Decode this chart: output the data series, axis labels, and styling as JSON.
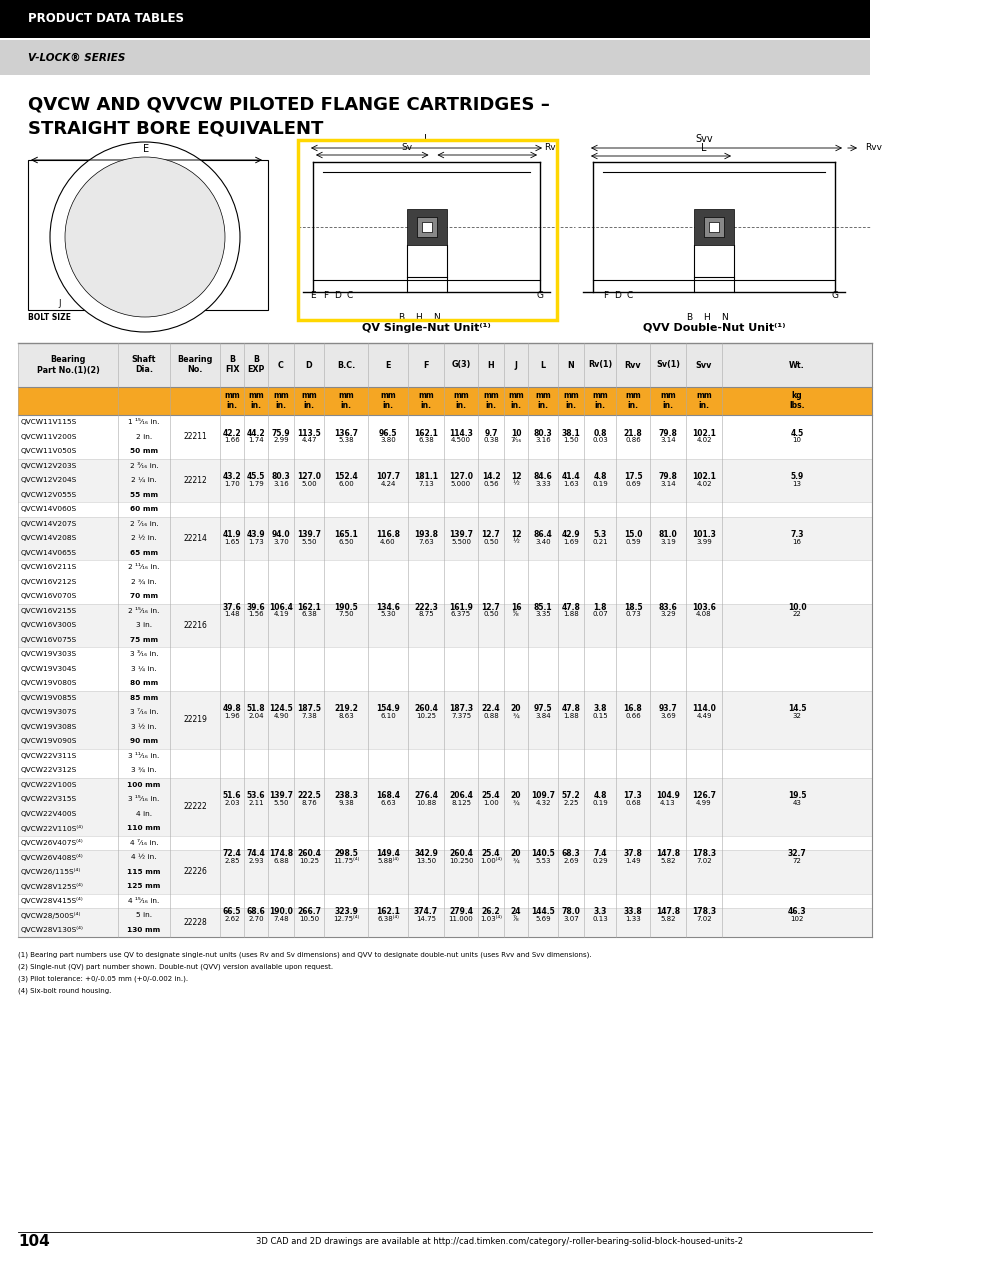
{
  "header_bar_color": "#000000",
  "subheader_bar_color": "#d0d0d0",
  "orange_color": "#F5A623",
  "header_text": "PRODUCT DATA TABLES",
  "subheader_text": "V-LOCK® SERIES",
  "title_line1": "QVCW AND QVVCW PILOTED FLANGE CARTRIDGES –",
  "title_line2": "STRAIGHT BORE EQUIVALENT",
  "groups": [
    {
      "bearing": "22211",
      "rows": [
        [
          "QVCW11V115S",
          "1 ¹⁵⁄₁₆ in.",
          false
        ],
        [
          "QVCW11V200S",
          "2 in.",
          true
        ],
        [
          "QVCW11V050S",
          "50 mm",
          false
        ]
      ],
      "data_row_idx": 1,
      "values": [
        "42.2",
        "44.2",
        "75.9",
        "113.5",
        "136.7",
        "96.5",
        "162.1",
        "114.3",
        "9.7",
        "10",
        "80.3",
        "38.1",
        "0.8",
        "21.8",
        "79.8",
        "102.1",
        "4.5"
      ],
      "values_in": [
        "1.66",
        "1.74",
        "2.99",
        "4.47",
        "5.38",
        "3.80",
        "6.38",
        "4.500",
        "0.38",
        "7⁄₁₆",
        "3.16",
        "1.50",
        "0.03",
        "0.86",
        "3.14",
        "4.02",
        "10"
      ]
    },
    {
      "bearing": "22212",
      "rows": [
        [
          "QVCW12V203S",
          "2 ³⁄₁₆ in.",
          false
        ],
        [
          "QVCW12V204S",
          "2 ¼ in.",
          true
        ],
        [
          "QVCW12V055S",
          "55 mm",
          false
        ]
      ],
      "data_row_idx": 1,
      "values": [
        "43.2",
        "45.5",
        "80.3",
        "127.0",
        "152.4",
        "107.7",
        "181.1",
        "127.0",
        "14.2",
        "12",
        "84.6",
        "41.4",
        "4.8",
        "17.5",
        "79.8",
        "102.1",
        "5.9"
      ],
      "values_in": [
        "1.70",
        "1.79",
        "3.16",
        "5.00",
        "6.00",
        "4.24",
        "7.13",
        "5.000",
        "0.56",
        "½",
        "3.33",
        "1.63",
        "0.19",
        "0.69",
        "3.14",
        "4.02",
        "13"
      ]
    },
    {
      "bearing": "",
      "rows": [
        [
          "QVCW14V060S",
          "60 mm",
          false
        ]
      ],
      "data_row_idx": -1,
      "values": [],
      "values_in": []
    },
    {
      "bearing": "22214",
      "rows": [
        [
          "QVCW14V207S",
          "2 ⁷⁄₁₆ in.",
          false
        ],
        [
          "QVCW14V208S",
          "2 ½ in.",
          true
        ],
        [
          "QVCW14V065S",
          "65 mm",
          false
        ]
      ],
      "data_row_idx": 1,
      "values": [
        "41.9",
        "43.9",
        "94.0",
        "139.7",
        "165.1",
        "116.8",
        "193.8",
        "139.7",
        "12.7",
        "12",
        "86.4",
        "42.9",
        "5.3",
        "15.0",
        "81.0",
        "101.3",
        "7.3"
      ],
      "values_in": [
        "1.65",
        "1.73",
        "3.70",
        "5.50",
        "6.50",
        "4.60",
        "7.63",
        "5.500",
        "0.50",
        "½",
        "3.40",
        "1.69",
        "0.21",
        "0.59",
        "3.19",
        "3.99",
        "16"
      ]
    },
    {
      "bearing": "",
      "rows": [
        [
          "QVCW16V211S",
          "2 ¹¹⁄₁₆ in.",
          false
        ],
        [
          "QVCW16V212S",
          "2 ¾ in.",
          false
        ],
        [
          "QVCW16V070S",
          "70 mm",
          false
        ]
      ],
      "data_row_idx": -1,
      "values": [],
      "values_in": []
    },
    {
      "bearing": "22216",
      "rows": [
        [
          "QVCW16V215S",
          "2 ¹⁵⁄₁₆ in.",
          true
        ],
        [
          "QVCW16V300S",
          "3 in.",
          false
        ],
        [
          "QVCW16V075S",
          "75 mm",
          false
        ]
      ],
      "data_row_idx": 0,
      "values": [
        "37.6",
        "39.6",
        "106.4",
        "162.1",
        "190.5",
        "134.6",
        "222.3",
        "161.9",
        "12.7",
        "16",
        "85.1",
        "47.8",
        "1.8",
        "18.5",
        "83.6",
        "103.6",
        "10.0"
      ],
      "values_in": [
        "1.48",
        "1.56",
        "4.19",
        "6.38",
        "7.50",
        "5.30",
        "8.75",
        "6.375",
        "0.50",
        "⁵⁄₈",
        "3.35",
        "1.88",
        "0.07",
        "0.73",
        "3.29",
        "4.08",
        "22"
      ]
    },
    {
      "bearing": "",
      "rows": [
        [
          "QVCW19V303S",
          "3 ³⁄₁₆ in.",
          false
        ],
        [
          "QVCW19V304S",
          "3 ¼ in.",
          false
        ],
        [
          "QVCW19V080S",
          "80 mm",
          false
        ]
      ],
      "data_row_idx": -1,
      "values": [],
      "values_in": []
    },
    {
      "bearing": "22219",
      "rows": [
        [
          "QVCW19V085S",
          "85 mm",
          false
        ],
        [
          "QVCW19V307S",
          "3 ⁷⁄₁₆ in.",
          true
        ],
        [
          "QVCW19V308S",
          "3 ½ in.",
          false
        ],
        [
          "QVCW19V090S",
          "90 mm",
          false
        ]
      ],
      "data_row_idx": 1,
      "values": [
        "49.8",
        "51.8",
        "124.5",
        "187.5",
        "219.2",
        "154.9",
        "260.4",
        "187.3",
        "22.4",
        "20",
        "97.5",
        "47.8",
        "3.8",
        "16.8",
        "93.7",
        "114.0",
        "14.5"
      ],
      "values_in": [
        "1.96",
        "2.04",
        "4.90",
        "7.38",
        "8.63",
        "6.10",
        "10.25",
        "7.375",
        "0.88",
        "¾",
        "3.84",
        "1.88",
        "0.15",
        "0.66",
        "3.69",
        "4.49",
        "32"
      ]
    },
    {
      "bearing": "",
      "rows": [
        [
          "QVCW22V311S",
          "3 ¹¹⁄₁₆ in.",
          false
        ],
        [
          "QVCW22V312S",
          "3 ¾ in.",
          false
        ]
      ],
      "data_row_idx": -1,
      "values": [],
      "values_in": []
    },
    {
      "bearing": "22222",
      "rows": [
        [
          "QVCW22V100S",
          "100 mm",
          false
        ],
        [
          "QVCW22V315S",
          "3 ¹⁵⁄₁₆ in.",
          true
        ],
        [
          "QVCW22V400S",
          "4 in.",
          false
        ],
        [
          "QVCW22V110S⁽⁴⁾",
          "110 mm",
          false
        ]
      ],
      "data_row_idx": 1,
      "values": [
        "51.6",
        "53.6",
        "139.7",
        "222.5",
        "238.3",
        "168.4",
        "276.4",
        "206.4",
        "25.4",
        "20",
        "109.7",
        "57.2",
        "4.8",
        "17.3",
        "104.9",
        "126.7",
        "19.5"
      ],
      "values_in": [
        "2.03",
        "2.11",
        "5.50",
        "8.76",
        "9.38",
        "6.63",
        "10.88",
        "8.125",
        "1.00",
        "¾",
        "4.32",
        "2.25",
        "0.19",
        "0.68",
        "4.13",
        "4.99",
        "43"
      ]
    },
    {
      "bearing": "",
      "rows": [
        [
          "QVCW26V407S⁽⁴⁾",
          "4 ⁷⁄₁₆ in.",
          false
        ]
      ],
      "data_row_idx": -1,
      "values": [],
      "values_in": []
    },
    {
      "bearing": "22226",
      "rows": [
        [
          "QVCW26V408S⁽⁴⁾",
          "4 ½ in.",
          true
        ],
        [
          "QVCW26/115S⁽⁴⁾",
          "115 mm",
          false
        ],
        [
          "QVCW28V125S⁽⁴⁾",
          "125 mm",
          false
        ]
      ],
      "data_row_idx": 0,
      "values": [
        "72.4",
        "74.4",
        "174.8",
        "260.4",
        "298.5",
        "149.4",
        "342.9",
        "260.4",
        "25.4",
        "20",
        "140.5",
        "68.3",
        "7.4",
        "37.8",
        "147.8",
        "178.3",
        "32.7"
      ],
      "values_in": [
        "2.85",
        "2.93",
        "6.88",
        "10.25",
        "11.75⁽⁴⁾",
        "5.88⁽⁴⁾",
        "13.50",
        "10.250",
        "1.00⁽⁴⁾",
        "¾",
        "5.53",
        "2.69",
        "0.29",
        "1.49",
        "5.82",
        "7.02",
        "72"
      ]
    },
    {
      "bearing": "",
      "rows": [
        [
          "QVCW28V415S⁽⁴⁾",
          "4 ¹⁵⁄₁₆ in.",
          false
        ]
      ],
      "data_row_idx": -1,
      "values": [],
      "values_in": []
    },
    {
      "bearing": "22228",
      "rows": [
        [
          "QVCW28/500S⁽⁴⁾",
          "5 in.",
          true
        ],
        [
          "QVCW28V130S⁽⁴⁾",
          "130 mm",
          false
        ]
      ],
      "data_row_idx": 0,
      "values": [
        "66.5",
        "68.6",
        "190.0",
        "266.7",
        "323.9",
        "162.1",
        "374.7",
        "279.4",
        "26.2",
        "24",
        "144.5",
        "78.0",
        "3.3",
        "33.8",
        "147.8",
        "178.3",
        "46.3"
      ],
      "values_in": [
        "2.62",
        "2.70",
        "7.48",
        "10.50",
        "12.75⁽⁴⁾",
        "6.38⁽⁴⁾",
        "14.75",
        "11.000",
        "1.03⁽⁴⁾",
        "⁷⁄₈",
        "5.69",
        "3.07",
        "0.13",
        "1.33",
        "5.82",
        "7.02",
        "102"
      ]
    }
  ],
  "footnotes": [
    "(1) Bearing part numbers use QV to designate single-nut units (uses Rv and Sv dimensions) and QVV to designate double-nut units (uses Rvv and Svv dimensions).",
    "(2) Single-nut (QV) part number shown. Double-nut (QVV) version available upon request.",
    "(3) Pilot tolerance: +0/-0.05 mm (+0/-0.002 in.).",
    "(4) Six-bolt round housing."
  ],
  "page_num": "104",
  "page_footer": "3D CAD and 2D drawings are available at http://cad.timken.com/category/-roller-bearing-solid-block-housed-units-2"
}
